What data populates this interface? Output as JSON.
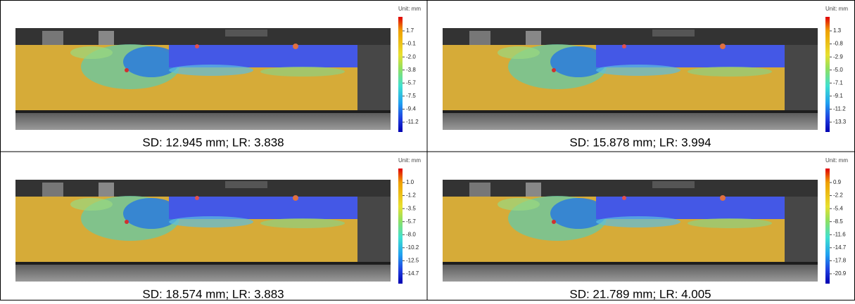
{
  "panels": [
    {
      "unit": "Unit: mm",
      "scale": [
        "1.7",
        "-0.1",
        "-2.0",
        "-3.8",
        "-5.7",
        "-7.5",
        "-9.4",
        "-11.2"
      ],
      "caption": "SD: 12.945 mm; LR: 3.838"
    },
    {
      "unit": "Unit: mm",
      "scale": [
        "1.3",
        "-0.8",
        "-2.9",
        "-5.0",
        "-7.1",
        "-9.1",
        "-11.2",
        "-13.3"
      ],
      "caption": "SD: 15.878 mm; LR: 3.994"
    },
    {
      "unit": "Unit: mm",
      "scale": [
        "1.0",
        "-1.2",
        "-3.5",
        "-5.7",
        "-8.0",
        "-10.2",
        "-12.5",
        "-14.7"
      ],
      "caption": "SD: 18.574 mm; LR: 3.883"
    },
    {
      "unit": "Unit: mm",
      "scale": [
        "0.9",
        "-2.2",
        "-5.4",
        "-8.5",
        "-11.6",
        "-14.7",
        "-17.8",
        "-20.9"
      ],
      "caption": "SD: 21.789 mm; LR: 4.005"
    }
  ]
}
